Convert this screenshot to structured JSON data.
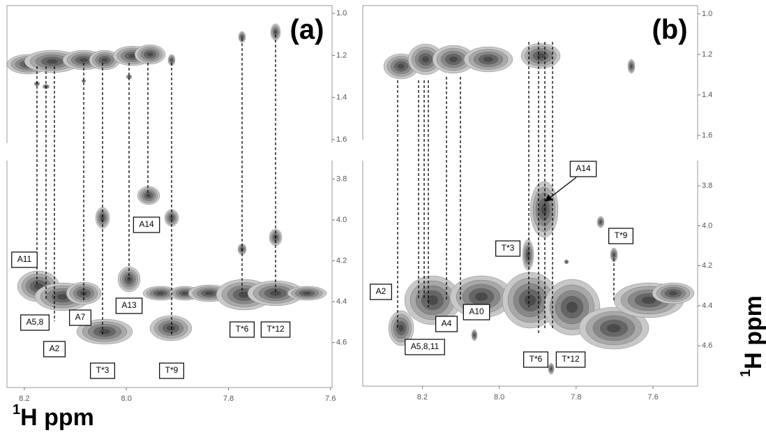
{
  "panels": [
    {
      "label": "(a)",
      "xlim": [
        8.234,
        7.597
      ],
      "xticks": [
        8.2,
        {
          "value": 8,
          "label": "8.0"
        },
        7.8,
        7.6
      ],
      "ylim_upper": [
        0.963,
        1.617
      ],
      "yticks_upper": [
        {
          "value": 1,
          "label": "1.0"
        },
        1.2,
        1.4,
        1.6
      ],
      "ylim_lower": [
        3.71,
        4.82
      ],
      "yticks_lower": [
        3.8,
        {
          "value": 4,
          "label": "4.0"
        },
        4.2,
        4.4,
        4.6
      ],
      "annotations": [
        "A11",
        "A5,8",
        "A2",
        "A7",
        "A13",
        "A14",
        "T*3",
        "T*9",
        "T*6",
        "T*12"
      ]
    },
    {
      "label": "(b)",
      "xlim": [
        8.355,
        7.484
      ],
      "xticks": [
        8.2,
        {
          "value": 8,
          "label": "8.0"
        },
        7.8,
        7.6
      ],
      "ylim_upper": [
        0.959,
        1.621
      ],
      "yticks_upper": [
        {
          "value": 1,
          "label": "1.0"
        },
        1.2,
        1.4,
        1.6
      ],
      "ylim_lower": [
        3.674,
        4.802
      ],
      "yticks_lower": [
        3.8,
        {
          "value": 4,
          "label": "4.0"
        },
        4.2,
        4.4,
        4.6
      ],
      "annotations": [
        "A14",
        "T*3",
        "T*9",
        "A2",
        "A10",
        "A4",
        "A5,8,11",
        "T*6",
        "T*12"
      ]
    }
  ],
  "axis_label": {
    "sup": "1",
    "text": "H ppm"
  }
}
